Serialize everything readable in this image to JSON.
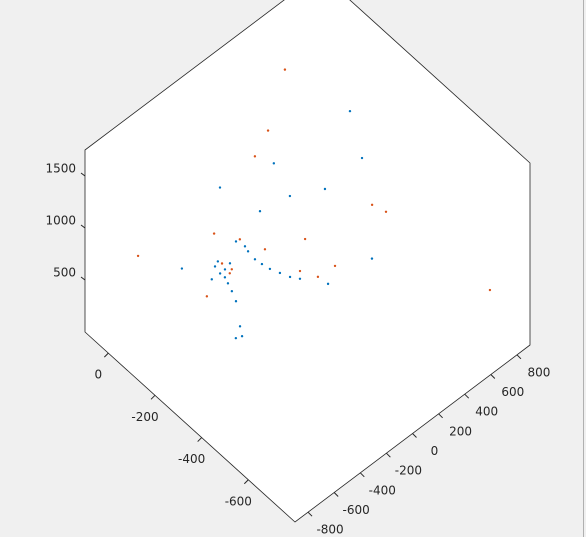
{
  "chart_data": {
    "type": "scatter3",
    "xlim": [
      -900,
      900
    ],
    "ylim": [
      -800,
      100
    ],
    "zlim": [
      0,
      1750
    ],
    "xticks": [
      -800,
      -600,
      -400,
      -200,
      0,
      200,
      400,
      600,
      800
    ],
    "yticks": [
      -600,
      -400,
      -200,
      0
    ],
    "zticks": [
      500,
      1000,
      1500
    ],
    "grid": false,
    "series": [
      {
        "color": "#0072bd",
        "x": [
          -342,
          -353,
          -314,
          -265,
          -415,
          -318,
          -338,
          -319,
          -322,
          -335,
          -370,
          -230,
          -238,
          -231,
          -220,
          -197,
          -173,
          -140,
          -268,
          -187,
          -40,
          139,
          411,
          389,
          206,
          -442,
          -235,
          2,
          -245,
          -4,
          -331,
          -327
        ],
        "y": [
          -145,
          -173,
          -172,
          -166,
          -172,
          -187,
          -215,
          -222,
          -241,
          -257,
          -250,
          -224,
          -258,
          -284,
          -312,
          -342,
          -372,
          -396,
          -232,
          -251,
          -297,
          -347,
          -302,
          -366,
          -511,
          -59,
          -175,
          -437,
          -112,
          -208,
          -151,
          -179
        ],
        "z": [
          600,
          600,
          600,
          600,
          600,
          500,
          500,
          400,
          200,
          150,
          150,
          800,
          800,
          800,
          800,
          800,
          800,
          800,
          900,
          1200,
          1300,
          1300,
          1700,
          1400,
          900,
          500,
          800,
          700,
          1200,
          1400,
          650,
          550
        ]
      },
      {
        "color": "#d95319",
        "x": [
          331,
          75,
          -615,
          602,
          359,
          385,
          -299,
          -442,
          -99,
          -209,
          -104,
          -56,
          66,
          -288,
          -290,
          -31,
          -285,
          -174
        ],
        "y": [
          -68,
          -139,
          32,
          -795,
          -426,
          -471,
          -151,
          -166,
          -180,
          -177,
          -376,
          -426,
          -431,
          -178,
          -112,
          -357,
          -185,
          -265
        ],
        "z": [
          1700,
          1500,
          600,
          800,
          1100,
          1100,
          600,
          450,
          1500,
          800,
          800,
          800,
          800,
          550,
          800,
          1000,
          600,
          850
        ]
      }
    ]
  }
}
